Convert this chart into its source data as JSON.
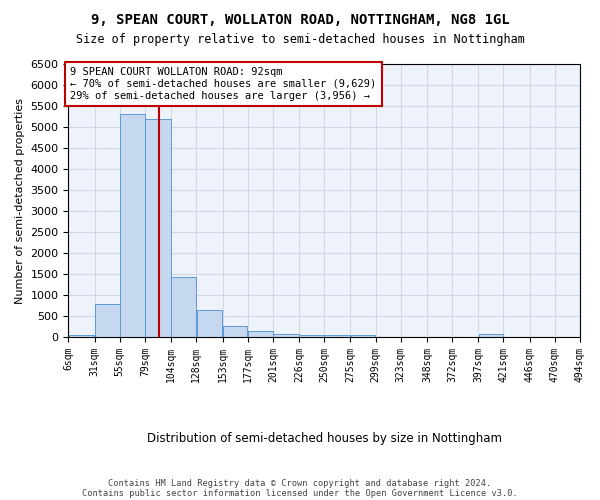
{
  "title": "9, SPEAN COURT, WOLLATON ROAD, NOTTINGHAM, NG8 1GL",
  "subtitle": "Size of property relative to semi-detached houses in Nottingham",
  "xlabel": "Distribution of semi-detached houses by size in Nottingham",
  "ylabel": "Number of semi-detached properties",
  "property_size": 92,
  "property_label": "9 SPEAN COURT WOLLATON ROAD: 92sqm",
  "pct_smaller": 70,
  "n_smaller": 9629,
  "pct_larger": 29,
  "n_larger": 3956,
  "bar_edges": [
    6,
    31,
    55,
    79,
    104,
    128,
    153,
    177,
    201,
    226,
    250,
    275,
    299,
    323,
    348,
    372,
    397,
    421,
    446,
    470,
    494
  ],
  "bar_heights": [
    50,
    780,
    5300,
    5200,
    1420,
    635,
    260,
    135,
    80,
    55,
    55,
    60,
    0,
    0,
    0,
    0,
    70,
    0,
    0,
    0
  ],
  "bar_color": "#c5d8f0",
  "bar_edge_color": "#5b9bd5",
  "vline_x": 92,
  "vline_color": "#c00000",
  "grid_color": "#d0d8e8",
  "background_color": "#eef2fa",
  "annotation_box_color": "#ffffff",
  "annotation_box_edge": "#c00000",
  "footer_line1": "Contains HM Land Registry data © Crown copyright and database right 2024.",
  "footer_line2": "Contains public sector information licensed under the Open Government Licence v3.0.",
  "ylim": [
    0,
    6500
  ],
  "xlim": [
    6,
    494
  ],
  "yticks": [
    0,
    500,
    1000,
    1500,
    2000,
    2500,
    3000,
    3500,
    4000,
    4500,
    5000,
    5500,
    6000,
    6500
  ]
}
